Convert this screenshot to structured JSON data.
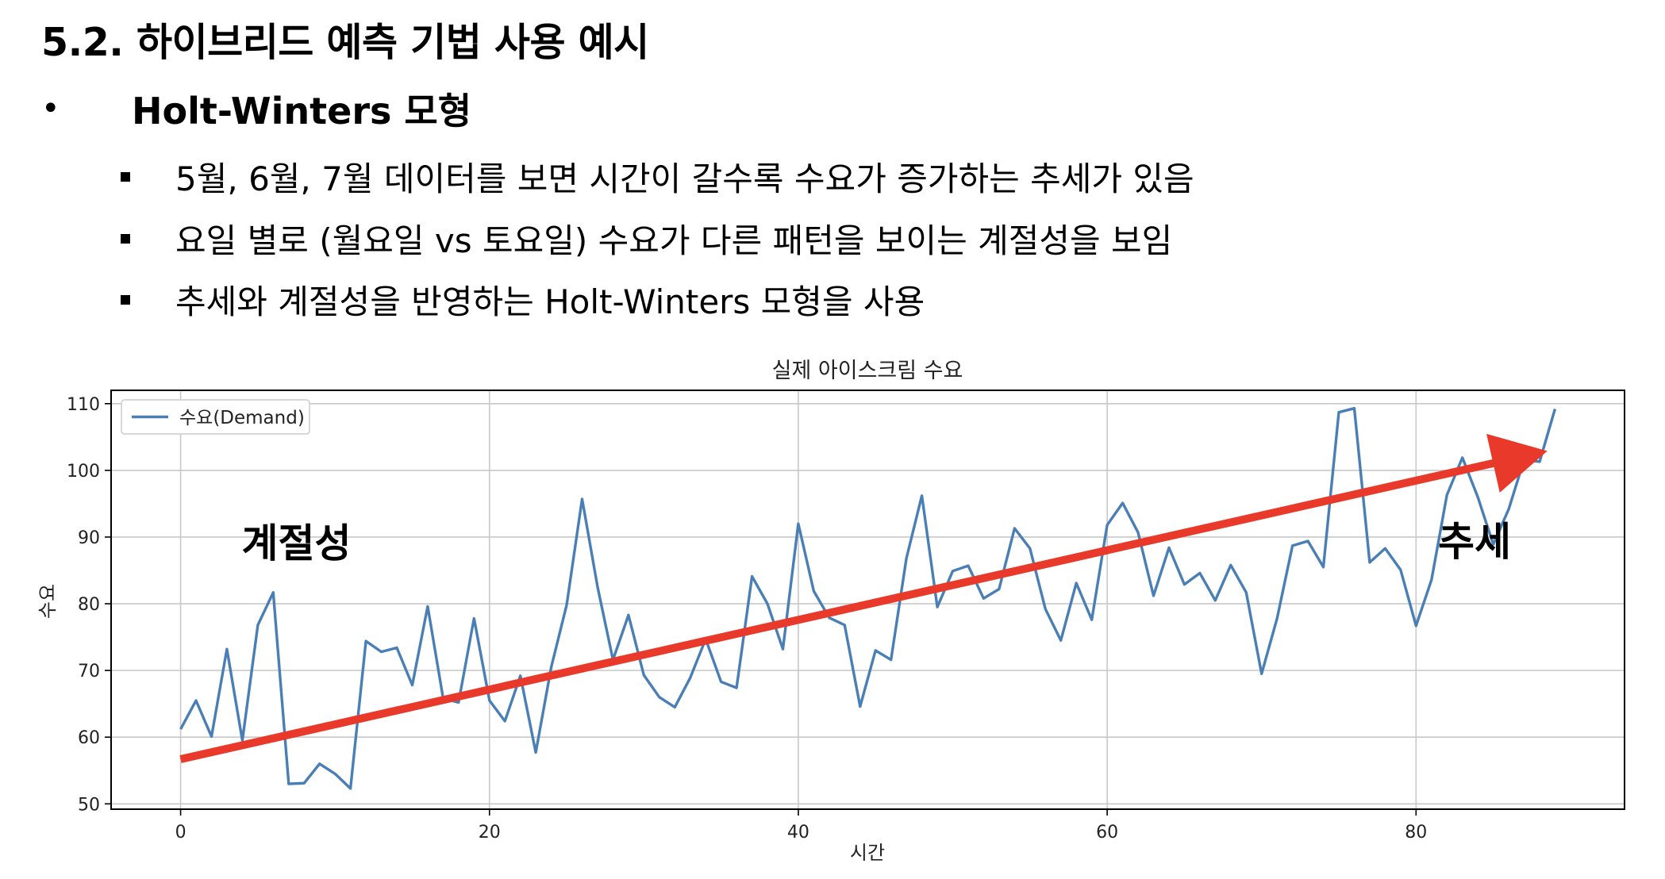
{
  "slide": {
    "title": "5.2. 하이브리드 예측 기법 사용 예시",
    "heading_bullet": "•",
    "heading": "Holt-Winters 모형",
    "points": [
      "5월, 6월, 7월 데이터를 보면 시간이 갈수록 수요가 증가하는 추세가 있음",
      "요일 별로 (월요일 vs 토요일) 수요가 다른 패턴을 보이는 계절성을 보임",
      "추세와 계절성을 반영하는 Holt-Winters 모형을 사용"
    ]
  },
  "chart_data": {
    "type": "line",
    "title": "실제 아이스크림 수요",
    "xlabel": "시간",
    "ylabel": "수요",
    "xlim": [
      -4.5,
      93.5
    ],
    "ylim": [
      49.2,
      112
    ],
    "xticks": [
      0,
      20,
      40,
      60,
      80
    ],
    "yticks": [
      50,
      60,
      70,
      80,
      90,
      100,
      110
    ],
    "grid": true,
    "legend_position": "top-left",
    "series": [
      {
        "name": "수요(Demand)",
        "color": "#4a7fb5",
        "x": [
          0,
          1,
          2,
          3,
          4,
          5,
          6,
          7,
          8,
          9,
          10,
          11,
          12,
          13,
          14,
          15,
          16,
          17,
          18,
          19,
          20,
          21,
          22,
          23,
          24,
          25,
          26,
          27,
          28,
          29,
          30,
          31,
          32,
          33,
          34,
          35,
          36,
          37,
          38,
          39,
          40,
          41,
          42,
          43,
          44,
          45,
          46,
          47,
          48,
          49,
          50,
          51,
          52,
          53,
          54,
          55,
          56,
          57,
          58,
          59,
          60,
          61,
          62,
          63,
          64,
          65,
          66,
          67,
          68,
          69,
          70,
          71,
          72,
          73,
          74,
          75,
          76,
          77,
          78,
          79,
          80,
          81,
          82,
          83,
          84,
          85,
          86,
          87,
          88,
          89
        ],
        "y": [
          61.2,
          65.5,
          60.1,
          73.2,
          59.5,
          76.8,
          81.7,
          53.0,
          53.1,
          56.0,
          54.5,
          52.3,
          74.4,
          72.8,
          73.4,
          67.8,
          79.6,
          65.8,
          65.2,
          77.8,
          65.5,
          62.4,
          69.2,
          57.7,
          70.5,
          79.8,
          95.7,
          82.5,
          71.6,
          78.3,
          69.3,
          66.0,
          64.5,
          68.9,
          74.7,
          68.3,
          67.4,
          84.1,
          80.0,
          73.2,
          92.0,
          81.9,
          77.9,
          76.8,
          64.6,
          73.0,
          71.6,
          86.8,
          96.2,
          79.5,
          84.9,
          85.7,
          80.8,
          82.2,
          91.3,
          88.3,
          79.2,
          74.5,
          83.1,
          77.6,
          91.8,
          95.1,
          90.7,
          81.2,
          88.4,
          82.9,
          84.6,
          80.5,
          85.8,
          81.7,
          69.5,
          77.8,
          88.7,
          89.4,
          85.5,
          108.7,
          109.3,
          86.2,
          88.3,
          85.1,
          76.7,
          83.6,
          96.3,
          101.9,
          96.0,
          88.9,
          94.2,
          101.6,
          101.3,
          109.2
        ]
      }
    ],
    "trend_arrow": {
      "color": "#e8392a",
      "from": [
        0,
        56.7
      ],
      "to": [
        88.5,
        102.9
      ],
      "label": "추세"
    },
    "annotations": [
      {
        "text": "계절성",
        "x": 7.5,
        "y": 87
      }
    ]
  }
}
